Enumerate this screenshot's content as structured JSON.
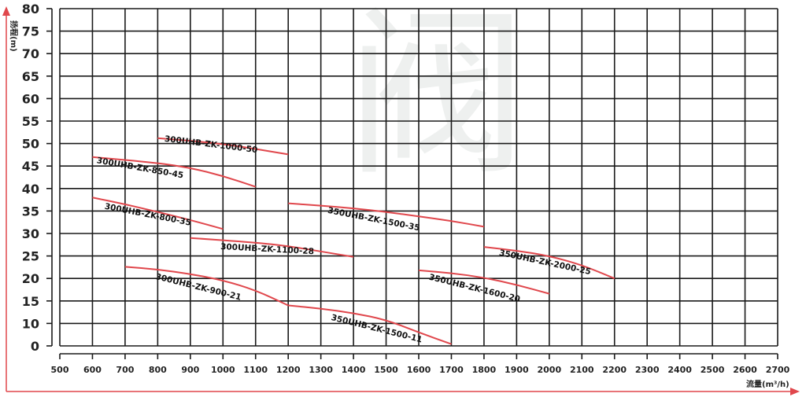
{
  "chart_data": {
    "type": "line",
    "title": "",
    "xlabel": "流量(m³/h)",
    "ylabel": "扬程(m)",
    "xlim": [
      500,
      2700
    ],
    "ylim": [
      5,
      80
    ],
    "x_ticks": [
      500,
      600,
      700,
      800,
      900,
      1000,
      1100,
      1200,
      1300,
      1400,
      1500,
      1600,
      1700,
      1800,
      1900,
      2000,
      2100,
      2200,
      2300,
      2400,
      2500,
      2600,
      2700
    ],
    "y_tick_labels": [
      "80",
      "75",
      "70",
      "65",
      "60",
      "55",
      "50",
      "45",
      "40",
      "35",
      "30",
      "25",
      "20",
      "15",
      "10",
      "0"
    ],
    "grid": true,
    "legend": "inline labels",
    "watermark": "阀",
    "colors": {
      "curve": "#e0474c",
      "grid": "#1a1a1a",
      "axis_arrow": "#e0474c",
      "watermark": "#eef0ef"
    },
    "series": [
      {
        "name": "300UHB-ZK-1000-50",
        "x": [
          800,
          1000,
          1200
        ],
        "y": [
          51.2,
          50.0,
          47.6
        ],
        "label_pos": [
          820,
          50.5
        ],
        "label_angle": 7
      },
      {
        "name": "300UHB-ZK-850-45",
        "x": [
          600,
          800,
          900,
          1000,
          1100
        ],
        "y": [
          47.0,
          45.7,
          44.6,
          42.8,
          40.4
        ],
        "label_pos": [
          612,
          45.7
        ],
        "label_angle": 10
      },
      {
        "name": "300UHB-ZK-800-35",
        "x": [
          600,
          700,
          800,
          900,
          1000
        ],
        "y": [
          38.0,
          36.5,
          34.8,
          33.0,
          31.0
        ],
        "label_pos": [
          636,
          35.5
        ],
        "label_angle": 11
      },
      {
        "name": "300UHB-ZK-1100-28",
        "x": [
          900,
          1100,
          1200,
          1300,
          1400
        ],
        "y": [
          29.0,
          28.0,
          27.2,
          26.0,
          24.8
        ],
        "label_pos": [
          992,
          26.5
        ],
        "label_angle": 3
      },
      {
        "name": "300UHB-ZK-900-21",
        "x": [
          700,
          800,
          900,
          1000,
          1100,
          1200
        ],
        "y": [
          22.6,
          22.0,
          21.0,
          19.6,
          17.4,
          14.0
        ],
        "label_pos": [
          792,
          19.9
        ],
        "label_angle": 14
      },
      {
        "name": "350UHB-ZK-1500-11",
        "x": [
          1200,
          1300,
          1400,
          1500,
          1600,
          1700
        ],
        "y": [
          14.0,
          13.3,
          12.3,
          10.8,
          8.0,
          5.4
        ],
        "label_pos": [
          1330,
          10.8
        ],
        "label_angle": 14
      },
      {
        "name": "350UHB-ZK-1500-35",
        "x": [
          1200,
          1300,
          1400,
          1500,
          1600,
          1700,
          1800
        ],
        "y": [
          36.7,
          36.2,
          35.6,
          34.8,
          33.8,
          32.8,
          31.5
        ],
        "label_pos": [
          1320,
          34.6
        ],
        "label_angle": 11
      },
      {
        "name": "350UHB-ZK-1600-20",
        "x": [
          1600,
          1700,
          1800,
          1900,
          2000
        ],
        "y": [
          21.8,
          21.2,
          20.2,
          18.6,
          16.6
        ],
        "label_pos": [
          1630,
          19.8
        ],
        "label_angle": 14
      },
      {
        "name": "350UHB-ZK-2000-25",
        "x": [
          1800,
          1900,
          2000,
          2100,
          2200
        ],
        "y": [
          27.0,
          26.2,
          25.0,
          23.0,
          20.0
        ],
        "label_pos": [
          1845,
          25.2
        ],
        "label_angle": 12
      }
    ]
  }
}
